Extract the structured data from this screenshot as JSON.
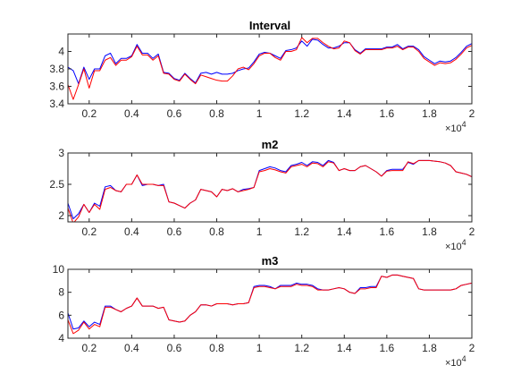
{
  "chart_data": [
    {
      "type": "line",
      "title": "Interval",
      "xlim": [
        1000,
        20000
      ],
      "ylim": [
        3.4,
        4.2
      ],
      "xticks": [
        2000,
        4000,
        6000,
        8000,
        10000,
        12000,
        14000,
        16000,
        18000,
        20000
      ],
      "xtick_labels": [
        "0.2",
        "0.4",
        "0.6",
        "0.8",
        "1",
        "1.2",
        "1.4",
        "1.6",
        "1.8",
        "2"
      ],
      "yticks": [
        3.4,
        3.6,
        3.8,
        4.0
      ],
      "ytick_labels": [
        "3.4",
        "3.6",
        "3.8",
        "4"
      ],
      "x_multiplier": "×10^4",
      "x": [
        1000,
        1250,
        1500,
        1750,
        2000,
        2250,
        2500,
        2750,
        3000,
        3250,
        3500,
        3750,
        4000,
        4250,
        4500,
        4750,
        5000,
        5250,
        5500,
        5750,
        6000,
        6250,
        6500,
        6750,
        7000,
        7250,
        7500,
        7750,
        8000,
        8250,
        8500,
        8750,
        9000,
        9250,
        9500,
        9750,
        10000,
        10250,
        10500,
        10750,
        11000,
        11250,
        11500,
        11750,
        12000,
        12250,
        12500,
        12750,
        13000,
        13250,
        13500,
        13750,
        14000,
        14250,
        14500,
        14750,
        15000,
        15250,
        15500,
        15750,
        16000,
        16250,
        16500,
        16750,
        17000,
        17250,
        17500,
        17750,
        18000,
        18250,
        18500,
        18750,
        19000,
        19250,
        19500,
        19750,
        20000
      ],
      "series": [
        {
          "color": "#0000ff",
          "values": [
            3.82,
            3.78,
            3.63,
            3.82,
            3.68,
            3.8,
            3.8,
            3.95,
            3.98,
            3.86,
            3.92,
            3.92,
            3.95,
            4.08,
            3.98,
            3.98,
            3.92,
            3.97,
            3.76,
            3.75,
            3.69,
            3.67,
            3.75,
            3.69,
            3.64,
            3.75,
            3.76,
            3.74,
            3.76,
            3.74,
            3.74,
            3.75,
            3.78,
            3.8,
            3.81,
            3.88,
            3.97,
            3.99,
            3.98,
            3.95,
            3.92,
            4.01,
            4.02,
            4.04,
            4.12,
            4.06,
            4.14,
            4.13,
            4.08,
            4.04,
            4.04,
            4.06,
            4.1,
            4.1,
            4.02,
            3.98,
            4.03,
            4.03,
            4.03,
            4.03,
            4.05,
            4.05,
            4.08,
            4.03,
            4.06,
            4.06,
            4.02,
            3.94,
            3.9,
            3.86,
            3.89,
            3.88,
            3.89,
            3.93,
            3.99,
            4.06,
            4.09
          ]
        },
        {
          "color": "#ff0000",
          "values": [
            3.62,
            3.45,
            3.62,
            3.8,
            3.58,
            3.78,
            3.78,
            3.9,
            3.93,
            3.84,
            3.9,
            3.9,
            3.94,
            4.06,
            3.96,
            3.96,
            3.9,
            3.95,
            3.75,
            3.74,
            3.68,
            3.66,
            3.74,
            3.68,
            3.63,
            3.73,
            3.71,
            3.69,
            3.67,
            3.66,
            3.66,
            3.72,
            3.8,
            3.82,
            3.79,
            3.86,
            3.95,
            3.98,
            3.98,
            3.93,
            3.9,
            4.0,
            4.0,
            4.02,
            4.16,
            4.1,
            4.15,
            4.15,
            4.1,
            4.06,
            4.03,
            4.04,
            4.12,
            4.1,
            4.01,
            3.97,
            4.02,
            4.02,
            4.02,
            4.02,
            4.04,
            4.04,
            4.06,
            4.02,
            4.05,
            4.05,
            4.0,
            3.92,
            3.88,
            3.84,
            3.87,
            3.86,
            3.87,
            3.91,
            3.97,
            4.04,
            4.07
          ]
        }
      ]
    },
    {
      "type": "line",
      "title": "m2",
      "xlim": [
        1000,
        20000
      ],
      "ylim": [
        1.9,
        3.0
      ],
      "xticks": [
        2000,
        4000,
        6000,
        8000,
        10000,
        12000,
        14000,
        16000,
        18000,
        20000
      ],
      "xtick_labels": [
        "0.2",
        "0.4",
        "0.6",
        "0.8",
        "1",
        "1.2",
        "1.4",
        "1.6",
        "1.8",
        "2"
      ],
      "yticks": [
        2.0,
        2.5,
        3.0
      ],
      "ytick_labels": [
        "2",
        "2.5",
        "3"
      ],
      "x_multiplier": "×10^4",
      "x": [
        1000,
        1250,
        1500,
        1750,
        2000,
        2250,
        2500,
        2750,
        3000,
        3250,
        3500,
        3750,
        4000,
        4250,
        4500,
        4750,
        5000,
        5250,
        5500,
        5750,
        6000,
        6250,
        6500,
        6750,
        7000,
        7250,
        7500,
        7750,
        8000,
        8250,
        8500,
        8750,
        9000,
        9250,
        9500,
        9750,
        10000,
        10250,
        10500,
        10750,
        11000,
        11250,
        11500,
        11750,
        12000,
        12250,
        12500,
        12750,
        13000,
        13250,
        13500,
        13750,
        14000,
        14250,
        14500,
        14750,
        15000,
        15250,
        15500,
        15750,
        16000,
        16250,
        16500,
        16750,
        17000,
        17250,
        17500,
        17750,
        18000,
        18250,
        18500,
        18750,
        19000,
        19250,
        19500,
        19750,
        20000
      ],
      "series": [
        {
          "color": "#0000ff",
          "values": [
            2.2,
            1.95,
            2.03,
            2.18,
            2.05,
            2.2,
            2.15,
            2.46,
            2.48,
            2.4,
            2.38,
            2.5,
            2.5,
            2.65,
            2.48,
            2.5,
            2.5,
            2.48,
            2.5,
            2.22,
            2.2,
            2.16,
            2.12,
            2.2,
            2.25,
            2.42,
            2.4,
            2.38,
            2.3,
            2.42,
            2.4,
            2.43,
            2.38,
            2.42,
            2.43,
            2.45,
            2.72,
            2.75,
            2.78,
            2.76,
            2.72,
            2.7,
            2.8,
            2.82,
            2.85,
            2.8,
            2.86,
            2.85,
            2.8,
            2.88,
            2.85,
            2.72,
            2.75,
            2.72,
            2.72,
            2.78,
            2.8,
            2.75,
            2.7,
            2.63,
            2.72,
            2.74,
            2.74,
            2.74,
            2.85,
            2.82,
            2.88,
            2.88,
            2.88,
            2.87,
            2.86,
            2.84,
            2.8,
            2.7,
            2.68,
            2.66,
            2.62
          ]
        },
        {
          "color": "#ff0000",
          "values": [
            2.12,
            1.88,
            1.98,
            2.18,
            2.05,
            2.18,
            2.1,
            2.42,
            2.45,
            2.4,
            2.38,
            2.5,
            2.5,
            2.65,
            2.5,
            2.5,
            2.5,
            2.48,
            2.48,
            2.22,
            2.2,
            2.16,
            2.12,
            2.2,
            2.25,
            2.42,
            2.4,
            2.38,
            2.3,
            2.42,
            2.4,
            2.43,
            2.38,
            2.4,
            2.42,
            2.45,
            2.7,
            2.72,
            2.75,
            2.73,
            2.7,
            2.68,
            2.78,
            2.8,
            2.82,
            2.78,
            2.84,
            2.83,
            2.78,
            2.86,
            2.84,
            2.72,
            2.75,
            2.72,
            2.72,
            2.78,
            2.8,
            2.75,
            2.7,
            2.63,
            2.71,
            2.72,
            2.72,
            2.72,
            2.86,
            2.83,
            2.88,
            2.88,
            2.88,
            2.87,
            2.86,
            2.84,
            2.8,
            2.7,
            2.68,
            2.66,
            2.62
          ]
        }
      ]
    },
    {
      "type": "line",
      "title": "m3",
      "xlim": [
        1000,
        20000
      ],
      "ylim": [
        4,
        10
      ],
      "xticks": [
        2000,
        4000,
        6000,
        8000,
        10000,
        12000,
        14000,
        16000,
        18000,
        20000
      ],
      "xtick_labels": [
        "0.2",
        "0.4",
        "0.6",
        "0.8",
        "1",
        "1.2",
        "1.4",
        "1.6",
        "1.8",
        "2"
      ],
      "yticks": [
        4,
        6,
        8,
        10
      ],
      "ytick_labels": [
        "4",
        "6",
        "8",
        "10"
      ],
      "x_multiplier": "×10^4",
      "x": [
        1000,
        1250,
        1500,
        1750,
        2000,
        2250,
        2500,
        2750,
        3000,
        3250,
        3500,
        3750,
        4000,
        4250,
        4500,
        4750,
        5000,
        5250,
        5500,
        5750,
        6000,
        6250,
        6500,
        6750,
        7000,
        7250,
        7500,
        7750,
        8000,
        8250,
        8500,
        8750,
        9000,
        9250,
        9500,
        9750,
        10000,
        10250,
        10500,
        10750,
        11000,
        11250,
        11500,
        11750,
        12000,
        12250,
        12500,
        12750,
        13000,
        13250,
        13500,
        13750,
        14000,
        14250,
        14500,
        14750,
        15000,
        15250,
        15500,
        15750,
        16000,
        16250,
        16500,
        16750,
        17000,
        17250,
        17500,
        17750,
        18000,
        18250,
        18500,
        18750,
        19000,
        19250,
        19500,
        19750,
        20000
      ],
      "series": [
        {
          "color": "#0000ff",
          "values": [
            6.2,
            4.8,
            4.9,
            5.5,
            5.0,
            5.4,
            5.2,
            6.8,
            6.8,
            6.5,
            6.3,
            6.6,
            6.8,
            7.5,
            6.8,
            6.8,
            6.8,
            6.6,
            6.7,
            5.6,
            5.5,
            5.4,
            5.5,
            6.0,
            6.3,
            6.9,
            6.9,
            6.8,
            7.0,
            7.0,
            7.0,
            6.9,
            7.0,
            7.0,
            7.1,
            8.5,
            8.6,
            8.6,
            8.5,
            8.3,
            8.6,
            8.6,
            8.6,
            8.8,
            8.7,
            8.7,
            8.6,
            8.3,
            8.2,
            8.2,
            8.3,
            8.4,
            8.3,
            8.0,
            7.9,
            8.4,
            8.4,
            8.5,
            8.5,
            9.4,
            9.3,
            9.5,
            9.5,
            9.4,
            9.3,
            9.2,
            8.3,
            8.2,
            8.2,
            8.2,
            8.2,
            8.2,
            8.2,
            8.3,
            8.6,
            8.7,
            8.8
          ]
        },
        {
          "color": "#ff0000",
          "values": [
            5.6,
            4.4,
            4.7,
            5.4,
            4.8,
            5.2,
            5.0,
            6.7,
            6.7,
            6.5,
            6.3,
            6.6,
            6.8,
            7.5,
            6.8,
            6.8,
            6.8,
            6.6,
            6.7,
            5.6,
            5.5,
            5.4,
            5.5,
            6.0,
            6.3,
            6.9,
            6.9,
            6.8,
            7.0,
            7.0,
            7.0,
            6.9,
            7.0,
            7.0,
            7.1,
            8.4,
            8.5,
            8.5,
            8.4,
            8.3,
            8.5,
            8.5,
            8.5,
            8.7,
            8.6,
            8.6,
            8.5,
            8.2,
            8.2,
            8.2,
            8.3,
            8.4,
            8.3,
            8.0,
            7.9,
            8.3,
            8.3,
            8.4,
            8.4,
            9.4,
            9.3,
            9.5,
            9.5,
            9.4,
            9.3,
            9.2,
            8.3,
            8.2,
            8.2,
            8.2,
            8.2,
            8.2,
            8.2,
            8.3,
            8.6,
            8.7,
            8.8
          ]
        }
      ]
    }
  ]
}
